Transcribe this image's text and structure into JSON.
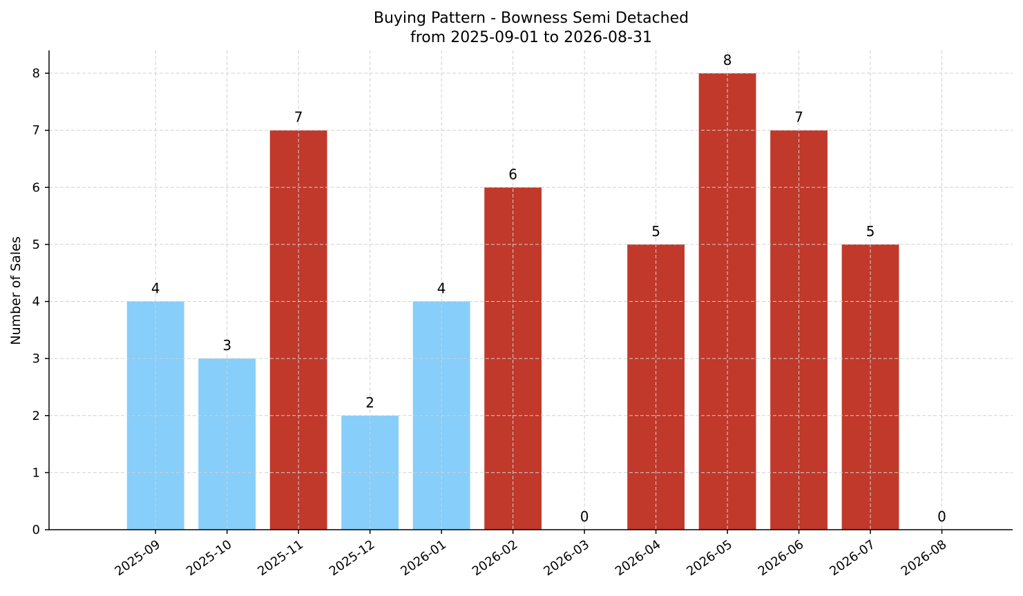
{
  "chart_data": {
    "type": "bar",
    "title": "Buying Pattern - Bowness Semi Detached",
    "subtitle": "from 2025-09-01 to 2026-08-31",
    "xlabel": "",
    "ylabel": "Number of Sales",
    "categories": [
      "2025-09",
      "2025-10",
      "2025-11",
      "2025-12",
      "2026-01",
      "2026-02",
      "2026-03",
      "2026-04",
      "2026-05",
      "2026-06",
      "2026-07",
      "2026-08"
    ],
    "values": [
      4,
      3,
      7,
      2,
      4,
      6,
      0,
      5,
      8,
      7,
      5,
      0
    ],
    "bar_colors": [
      "#87CEFA",
      "#87CEFA",
      "#C0392B",
      "#87CEFA",
      "#87CEFA",
      "#C0392B",
      "#C0392B",
      "#C0392B",
      "#C0392B",
      "#C0392B",
      "#C0392B",
      "#C0392B"
    ],
    "ylim": [
      0,
      8.4
    ],
    "yticks": [
      0,
      1,
      2,
      3,
      4,
      5,
      6,
      7,
      8
    ],
    "grid": true,
    "legend": "none"
  }
}
